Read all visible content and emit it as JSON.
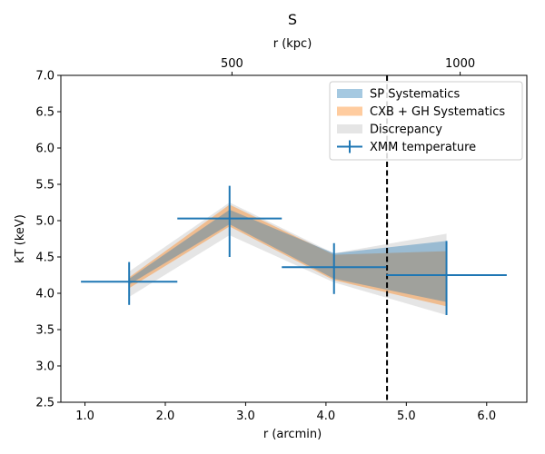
{
  "chart_data": {
    "type": "area",
    "title": "S",
    "xlabel": "r (arcmin)",
    "ylabel": "kT (keV)",
    "top_xlabel": "r (kpc)",
    "xlim": [
      0.7,
      6.5
    ],
    "ylim": [
      2.5,
      7.0
    ],
    "x_ticks": [
      1.0,
      2.0,
      3.0,
      4.0,
      5.0,
      6.0
    ],
    "x_tick_labels": [
      "1.0",
      "2.0",
      "3.0",
      "4.0",
      "5.0",
      "6.0"
    ],
    "y_ticks": [
      2.5,
      3.0,
      3.5,
      4.0,
      4.5,
      5.0,
      5.5,
      6.0,
      6.5,
      7.0
    ],
    "y_tick_labels": [
      "2.5",
      "3.0",
      "3.5",
      "4.0",
      "4.5",
      "5.0",
      "5.5",
      "6.0",
      "6.5",
      "7.0"
    ],
    "top_ticks": [
      {
        "x": 2.83,
        "label": "500"
      },
      {
        "x": 5.67,
        "label": "1000"
      }
    ],
    "vline_x": 4.76,
    "legend_location": "upper right",
    "series": [
      {
        "name": "Discrepancy",
        "color": "#bfbfbf",
        "x": [
          1.55,
          2.8,
          4.1,
          5.5
        ],
        "lower": [
          3.95,
          4.8,
          4.15,
          3.7
        ],
        "upper": [
          4.3,
          5.25,
          4.55,
          4.82
        ]
      },
      {
        "name": "CXB + GH Systematics",
        "color": "#ff7f0e",
        "x": [
          1.55,
          2.8,
          4.1,
          5.5
        ],
        "lower": [
          4.07,
          4.92,
          4.18,
          3.82
        ],
        "upper": [
          4.22,
          5.22,
          4.53,
          4.58
        ]
      },
      {
        "name": "SP Systematics",
        "color": "#1f77b4",
        "x": [
          1.55,
          2.8,
          4.1,
          5.5
        ],
        "lower": [
          4.12,
          4.95,
          4.2,
          3.88
        ],
        "upper": [
          4.2,
          5.15,
          4.55,
          4.72
        ]
      }
    ],
    "xmm_temperature": {
      "name": "XMM temperature",
      "color": "#1f77b4",
      "points": [
        {
          "x": 1.55,
          "y": 4.16,
          "xerr_low": 0.6,
          "xerr_high": 0.6,
          "yerr_low": 0.32,
          "yerr_high": 0.27
        },
        {
          "x": 2.8,
          "y": 5.03,
          "xerr_low": 0.65,
          "xerr_high": 0.65,
          "yerr_low": 0.53,
          "yerr_high": 0.45
        },
        {
          "x": 4.1,
          "y": 4.36,
          "xerr_low": 0.65,
          "xerr_high": 0.65,
          "yerr_low": 0.37,
          "yerr_high": 0.33
        },
        {
          "x": 5.5,
          "y": 4.25,
          "xerr_low": 0.75,
          "xerr_high": 0.75,
          "yerr_low": 0.55,
          "yerr_high": 0.47
        }
      ]
    },
    "legend": [
      {
        "label": "SP Systematics",
        "kind": "patch",
        "color": "#1f77b4"
      },
      {
        "label": "CXB + GH Systematics",
        "kind": "patch",
        "color": "#ff7f0e"
      },
      {
        "label": "Discrepancy",
        "kind": "patch",
        "color": "#bfbfbf"
      },
      {
        "label": "XMM temperature",
        "kind": "errorbar",
        "color": "#1f77b4"
      }
    ]
  }
}
